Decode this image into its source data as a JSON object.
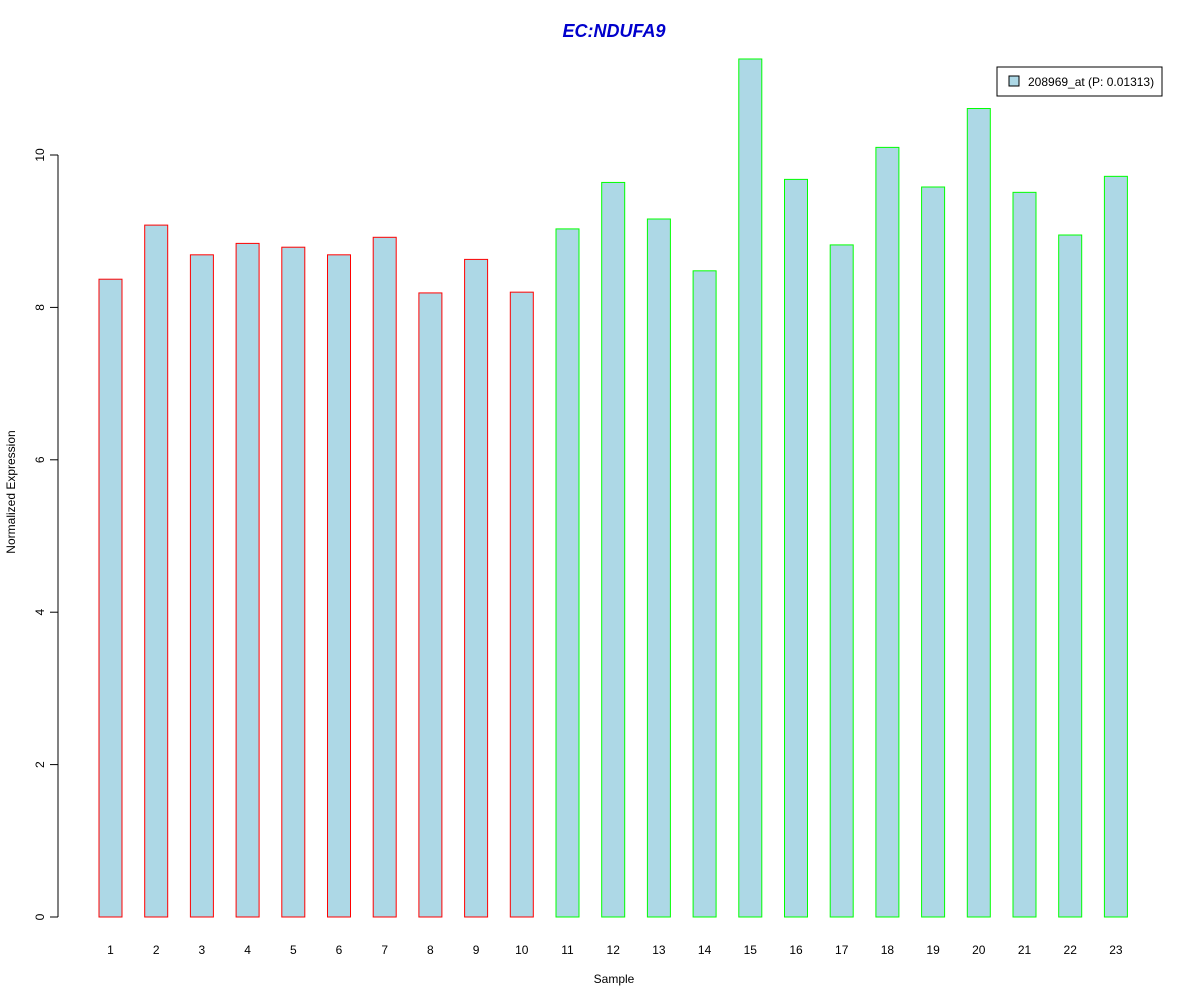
{
  "chart_data": {
    "type": "bar",
    "title": "EC:NDUFA9",
    "title_color": "#0000cc",
    "xlabel": "Sample",
    "ylabel": "Normalized Expression",
    "ylim": [
      0,
      11.4
    ],
    "yticks": [
      0,
      2,
      4,
      6,
      8,
      10
    ],
    "categories": [
      "1",
      "2",
      "3",
      "4",
      "5",
      "6",
      "7",
      "8",
      "9",
      "10",
      "11",
      "12",
      "13",
      "14",
      "15",
      "16",
      "17",
      "18",
      "19",
      "20",
      "21",
      "22",
      "23"
    ],
    "series": [
      {
        "name": "208969_at (P: 0.01313)",
        "fill": "#add8e6",
        "values": [
          8.37,
          9.08,
          8.69,
          8.84,
          8.79,
          8.69,
          8.92,
          8.19,
          8.63,
          8.2,
          9.03,
          9.64,
          9.16,
          8.48,
          11.26,
          9.68,
          8.82,
          10.1,
          9.58,
          10.61,
          9.51,
          8.95,
          9.72
        ]
      }
    ],
    "group_border_colors": [
      "#ff0000",
      "#ff0000",
      "#ff0000",
      "#ff0000",
      "#ff0000",
      "#ff0000",
      "#ff0000",
      "#ff0000",
      "#ff0000",
      "#ff0000",
      "#00ff00",
      "#00ff00",
      "#00ff00",
      "#00ff00",
      "#00ff00",
      "#00ff00",
      "#00ff00",
      "#00ff00",
      "#00ff00",
      "#00ff00",
      "#00ff00",
      "#00ff00",
      "#00ff00"
    ],
    "legend_position": "top-right",
    "grid": false
  }
}
